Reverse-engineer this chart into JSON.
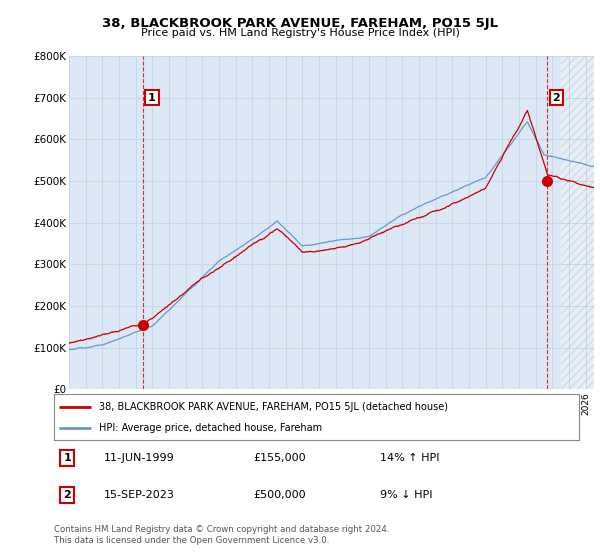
{
  "title": "38, BLACKBROOK PARK AVENUE, FAREHAM, PO15 5JL",
  "subtitle": "Price paid vs. HM Land Registry's House Price Index (HPI)",
  "ylabel_ticks": [
    "£0",
    "£100K",
    "£200K",
    "£300K",
    "£400K",
    "£500K",
    "£600K",
    "£700K",
    "£800K"
  ],
  "ytick_values": [
    0,
    100000,
    200000,
    300000,
    400000,
    500000,
    600000,
    700000,
    800000
  ],
  "ylim": [
    0,
    800000
  ],
  "xlim_start": 1995.0,
  "xlim_end": 2026.5,
  "legend_line1": "38, BLACKBROOK PARK AVENUE, FAREHAM, PO15 5JL (detached house)",
  "legend_line2": "HPI: Average price, detached house, Fareham",
  "line1_color": "#cc0000",
  "line2_color": "#6699cc",
  "point1_date": "11-JUN-1999",
  "point1_price": "£155,000",
  "point1_hpi": "14% ↑ HPI",
  "point1_x": 1999.44,
  "point1_y": 155000,
  "point2_date": "15-SEP-2023",
  "point2_price": "£500,000",
  "point2_hpi": "9% ↓ HPI",
  "point2_x": 2023.71,
  "point2_y": 500000,
  "footnote": "Contains HM Land Registry data © Crown copyright and database right 2024.\nThis data is licensed under the Open Government Licence v3.0.",
  "bg_color": "#ffffff",
  "grid_color": "#c8d8e8",
  "chart_bg": "#dce8f5",
  "hatch_color": "#c0c8d0"
}
